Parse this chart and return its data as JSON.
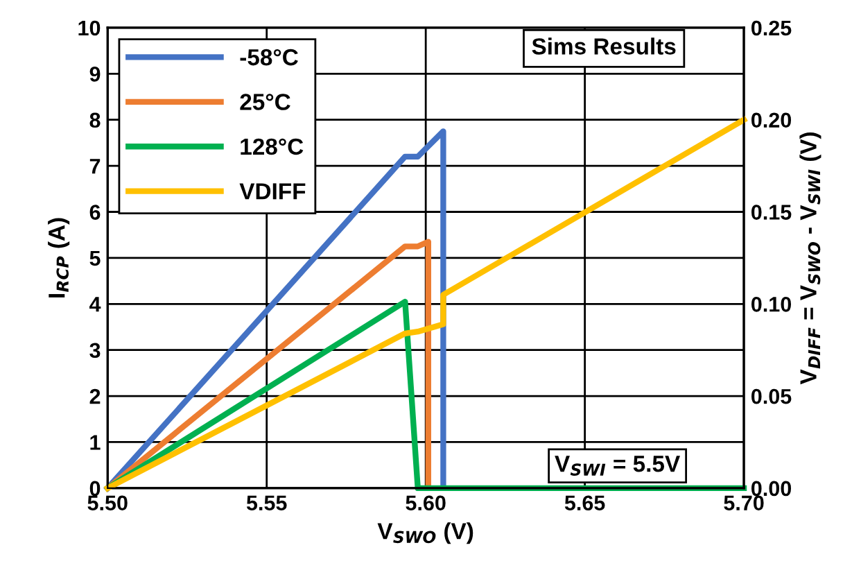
{
  "chart_data": {
    "type": "line",
    "xlabel": "V$_{SWO}$ (V)",
    "ylabel": "I$_{RCP}$ (A)",
    "y2label": "V$_{DIFF}$ = V$_{SWO}$ - V$_{SWI}$ (V)",
    "xlim": [
      5.5,
      5.7
    ],
    "xticks": [
      {
        "value": 5.5,
        "label": "5.50"
      },
      {
        "value": 5.55,
        "label": "5.55"
      },
      {
        "value": 5.6,
        "label": "5.60"
      },
      {
        "value": 5.65,
        "label": "5.65"
      },
      {
        "value": 5.7,
        "label": "5.70"
      }
    ],
    "ylim": [
      0,
      10
    ],
    "yticks": [
      0,
      1,
      2,
      3,
      4,
      5,
      6,
      7,
      8,
      9,
      10
    ],
    "y2lim": [
      0,
      0.25
    ],
    "y2ticks": [
      {
        "value": 0,
        "label": "0.00"
      },
      {
        "value": 0.05,
        "label": "0.05"
      },
      {
        "value": 0.1,
        "label": "0.10"
      },
      {
        "value": 0.15,
        "label": "0.15"
      },
      {
        "value": 0.2,
        "label": "0.20"
      },
      {
        "value": 0.25,
        "label": "0.25"
      }
    ],
    "grid": true,
    "legend": "top left",
    "marker": "none",
    "line_style": "solid",
    "annotations": [
      "Sims Results",
      {
        "text": "V$_{SWI}$ = 5.5V",
        "x": 5.68,
        "y": 0
      }
    ],
    "series": [
      {
        "name": "-58°C",
        "color": "#4472c4",
        "x": [
          5.5,
          5.5935,
          5.5975,
          5.6055,
          5.6055
        ],
        "values": [
          0,
          7.2,
          7.2,
          7.75,
          0
        ]
      },
      {
        "name": "25°C",
        "color": "#ed7d31",
        "x": [
          5.5,
          5.5935,
          5.5975,
          5.6008,
          5.6008
        ],
        "values": [
          0,
          5.25,
          5.25,
          5.35,
          0
        ]
      },
      {
        "name": "128°C",
        "color": "#00b050",
        "x": [
          5.5,
          5.5935,
          5.5975,
          5.7
        ],
        "values": [
          0,
          4.05,
          0,
          0
        ]
      },
      {
        "name": "VDIFF",
        "color": "#ffc000",
        "axis": "y2",
        "x": [
          5.5,
          5.5935,
          5.5975,
          5.6055,
          5.6055,
          5.7
        ],
        "values": [
          0,
          0.084,
          0.085,
          0.089,
          0.105,
          0.2
        ]
      }
    ]
  }
}
